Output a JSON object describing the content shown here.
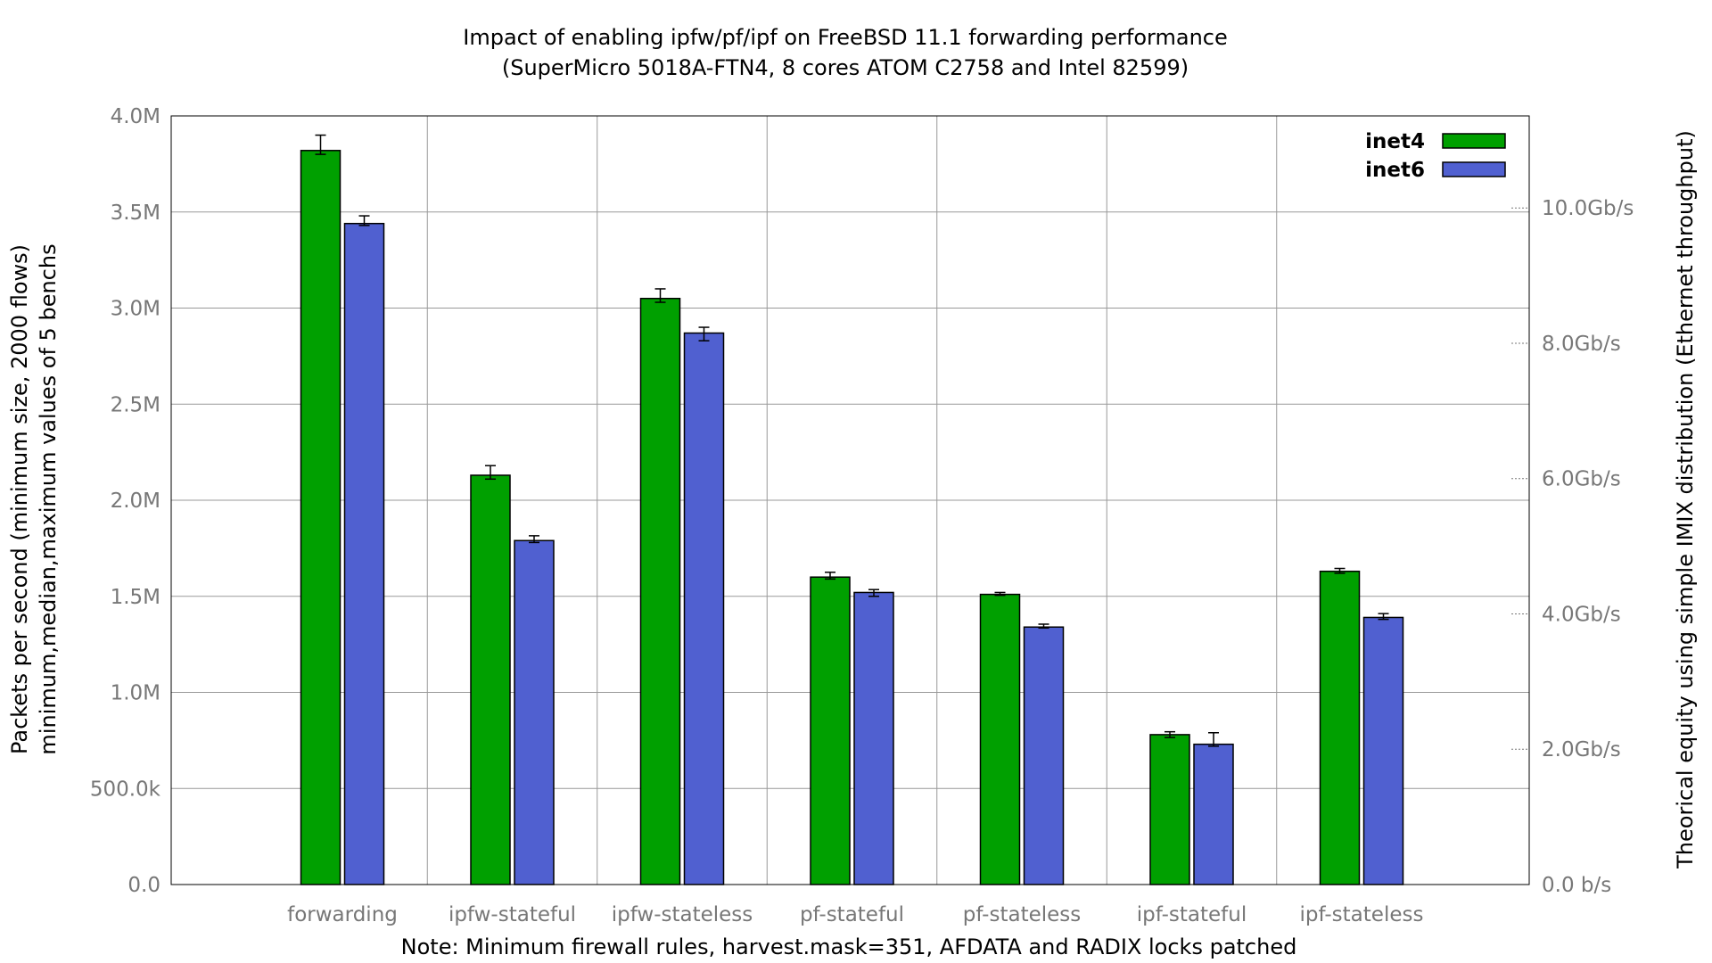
{
  "chart_data": {
    "type": "bar",
    "title": "Impact of enabling ipfw/pf/ipf on FreeBSD 11.1 forwarding performance",
    "subtitle": "(SuperMicro 5018A-FTN4, 8 cores ATOM C2758 and Intel 82599)",
    "ylabel_line1": "Packets per second (minimum size, 2000 flows)",
    "ylabel_line2": "minimum,median,maximum values of 5 benchs",
    "y2label": "Theorical equity using simple IMIX distribution (Ethernet throughput)",
    "xlabel": "Note: Minimum firewall rules, harvest.mask=351, AFDATA and RADIX locks patched",
    "ylim": [
      0,
      4000000
    ],
    "yticks": [
      {
        "value": 0,
        "label": "0.0"
      },
      {
        "value": 500000,
        "label": "500.0k"
      },
      {
        "value": 1000000,
        "label": "1.0M"
      },
      {
        "value": 1500000,
        "label": "1.5M"
      },
      {
        "value": 2000000,
        "label": "2.0M"
      },
      {
        "value": 2500000,
        "label": "2.5M"
      },
      {
        "value": 3000000,
        "label": "3.0M"
      },
      {
        "value": 3500000,
        "label": "3.5M"
      },
      {
        "value": 4000000,
        "label": "4.0M"
      }
    ],
    "y2ticks": [
      {
        "value": 0,
        "label": "0.0 b/s"
      },
      {
        "value": 2,
        "label": "2.0Gb/s"
      },
      {
        "value": 4,
        "label": "4.0Gb/s"
      },
      {
        "value": 6,
        "label": "6.0Gb/s"
      },
      {
        "value": 8,
        "label": "8.0Gb/s"
      },
      {
        "value": 10,
        "label": "10.0Gb/s"
      }
    ],
    "y2_gbps_per_mpps": 2.84,
    "categories": [
      "forwarding",
      "ipfw-stateful",
      "ipfw-stateless",
      "pf-stateful",
      "pf-stateless",
      "ipf-stateful",
      "ipf-stateless"
    ],
    "series": [
      {
        "name": "inet4",
        "color": "#00a000",
        "values": [
          3820000,
          2130000,
          3050000,
          1600000,
          1510000,
          780000,
          1630000
        ],
        "min": [
          3800000,
          2110000,
          3030000,
          1590000,
          1505000,
          765000,
          1620000
        ],
        "max": [
          3900000,
          2180000,
          3100000,
          1625000,
          1520000,
          795000,
          1645000
        ]
      },
      {
        "name": "inet6",
        "color": "#5060d0",
        "values": [
          3440000,
          1790000,
          2870000,
          1520000,
          1340000,
          730000,
          1390000
        ],
        "min": [
          3430000,
          1780000,
          2830000,
          1500000,
          1335000,
          720000,
          1380000
        ],
        "max": [
          3480000,
          1815000,
          2900000,
          1535000,
          1355000,
          790000,
          1410000
        ]
      }
    ],
    "legend_position": "top-right",
    "grid": true
  }
}
